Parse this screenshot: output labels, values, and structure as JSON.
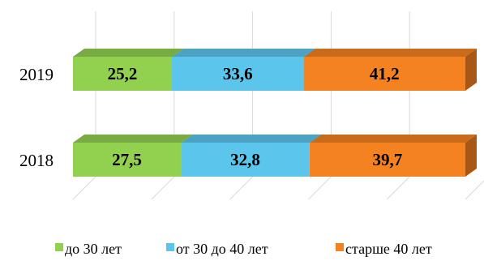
{
  "chart_data": {
    "type": "bar",
    "orientation": "horizontal",
    "stacked": true,
    "stacked_percent": true,
    "style_3d": true,
    "categories": [
      "2019",
      "2018"
    ],
    "xlim": [
      0,
      100
    ],
    "grid": true,
    "legend_position": "bottom",
    "series": [
      {
        "name": "до 30 лет",
        "values": [
          25.2,
          27.5
        ],
        "color": "#92D050"
      },
      {
        "name": "от 30 до 40 лет",
        "values": [
          33.6,
          32.8
        ],
        "color": "#5BC5EC"
      },
      {
        "name": "старше 40 лет",
        "values": [
          41.2,
          39.7
        ],
        "color": "#F58220"
      }
    ],
    "data_labels": [
      [
        "25,2",
        "33,6",
        "41,2"
      ],
      [
        "27,5",
        "32,8",
        "39,7"
      ]
    ]
  }
}
